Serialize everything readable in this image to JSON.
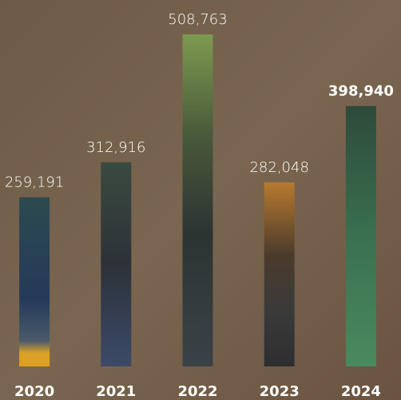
{
  "chart_data": {
    "type": "bar",
    "categories": [
      "2020",
      "2021",
      "2022",
      "2023",
      "2024"
    ],
    "values": [
      259191,
      312916,
      508763,
      282048,
      398940
    ],
    "value_labels": [
      "259,191",
      "312,916",
      "508,763",
      "282,048",
      "398,940"
    ]
  }
}
